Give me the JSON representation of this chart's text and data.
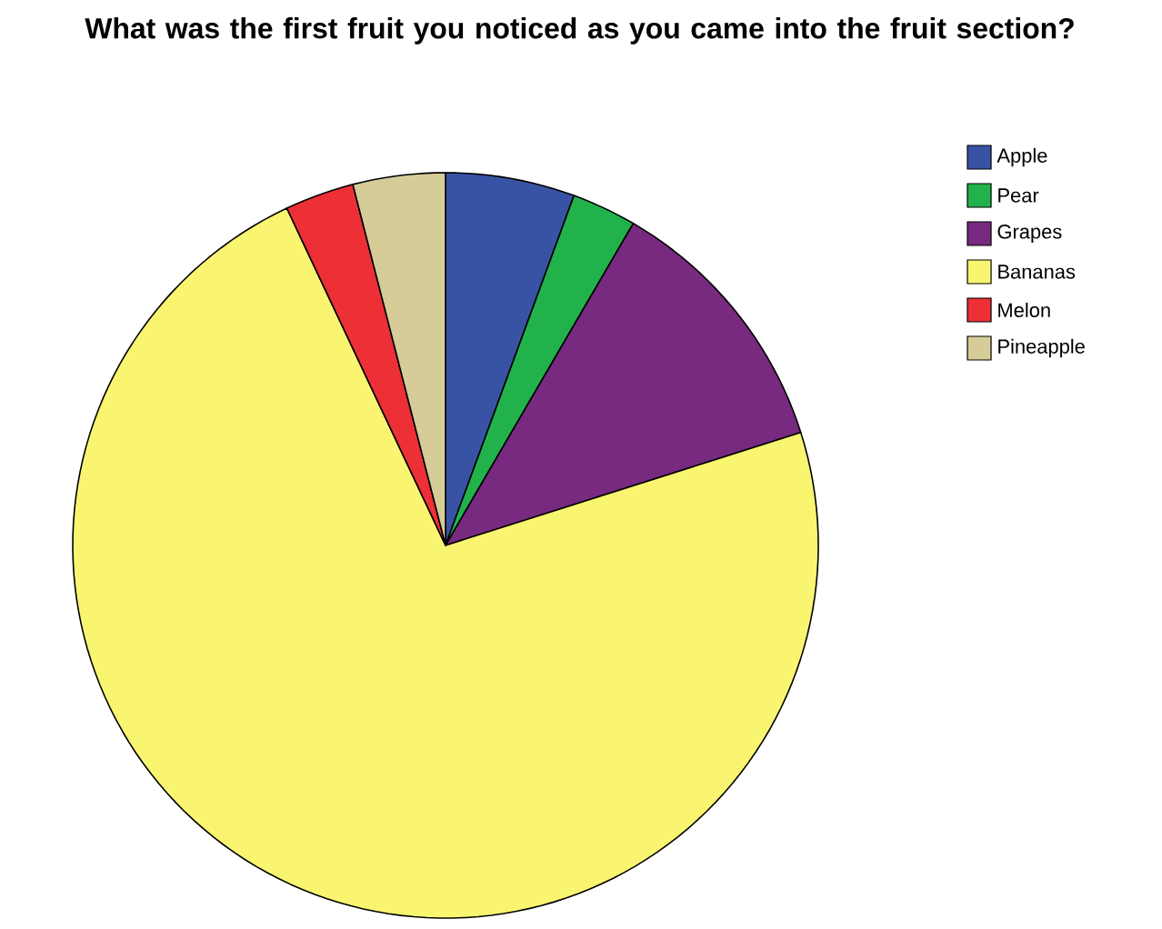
{
  "chart_data": {
    "type": "pie",
    "title": "What was the first fruit you noticed as you came into the fruit section?",
    "categories": [
      "Apple",
      "Pear",
      "Grapes",
      "Bananas",
      "Melon",
      "Pineapple"
    ],
    "values": [
      5.6,
      2.8,
      11.7,
      72.9,
      3.0,
      4.0
    ],
    "colors": [
      "#3953a4",
      "#22b24c",
      "#772a7f",
      "#f9f571",
      "#ed2f36",
      "#d5cc98"
    ],
    "legend": "top right"
  }
}
